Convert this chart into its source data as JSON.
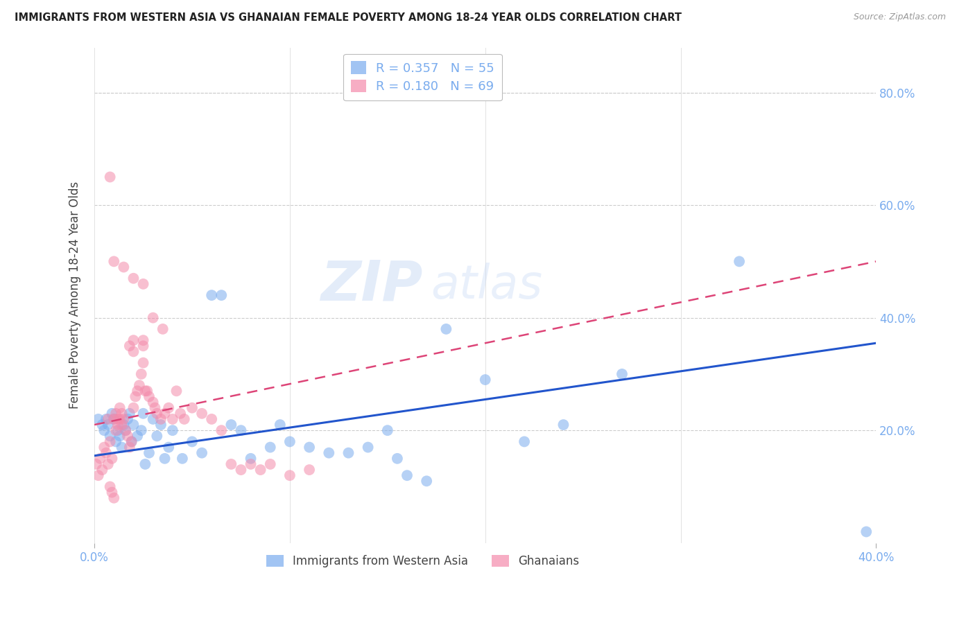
{
  "title": "IMMIGRANTS FROM WESTERN ASIA VS GHANAIAN FEMALE POVERTY AMONG 18-24 YEAR OLDS CORRELATION CHART",
  "source": "Source: ZipAtlas.com",
  "ylabel": "Female Poverty Among 18-24 Year Olds",
  "xlim": [
    0.0,
    0.4
  ],
  "ylim": [
    0.0,
    0.88
  ],
  "xticks": [
    0.0,
    0.4
  ],
  "xticklabels": [
    "0.0%",
    "40.0%"
  ],
  "yticks": [
    0.2,
    0.4,
    0.6,
    0.8
  ],
  "yticklabels": [
    "20.0%",
    "40.0%",
    "60.0%",
    "80.0%"
  ],
  "blue_color": "#7aacee",
  "pink_color": "#f48bab",
  "trendline_blue_color": "#2255cc",
  "trendline_pink_color": "#dd4477",
  "blue_label": "Immigrants from Western Asia",
  "pink_label": "Ghanaians",
  "legend_r_blue": "0.357",
  "legend_n_blue": "55",
  "legend_r_pink": "0.180",
  "legend_n_pink": "69",
  "watermark": "ZIPatlas",
  "blue_trendline_x0": 0.0,
  "blue_trendline_y0": 0.155,
  "blue_trendline_x1": 0.4,
  "blue_trendline_y1": 0.355,
  "pink_trendline_x0": 0.0,
  "pink_trendline_y0": 0.21,
  "pink_trendline_x1": 0.4,
  "pink_trendline_y1": 0.5,
  "blue_x": [
    0.002,
    0.004,
    0.005,
    0.006,
    0.007,
    0.008,
    0.009,
    0.01,
    0.011,
    0.012,
    0.013,
    0.014,
    0.015,
    0.016,
    0.017,
    0.018,
    0.019,
    0.02,
    0.022,
    0.024,
    0.025,
    0.026,
    0.028,
    0.03,
    0.032,
    0.034,
    0.036,
    0.038,
    0.04,
    0.045,
    0.05,
    0.055,
    0.06,
    0.065,
    0.07,
    0.075,
    0.08,
    0.09,
    0.095,
    0.1,
    0.11,
    0.12,
    0.13,
    0.14,
    0.15,
    0.155,
    0.16,
    0.17,
    0.18,
    0.2,
    0.22,
    0.24,
    0.27,
    0.33,
    0.395
  ],
  "blue_y": [
    0.22,
    0.21,
    0.2,
    0.22,
    0.21,
    0.19,
    0.23,
    0.22,
    0.18,
    0.2,
    0.19,
    0.17,
    0.21,
    0.2,
    0.22,
    0.23,
    0.18,
    0.21,
    0.19,
    0.2,
    0.23,
    0.14,
    0.16,
    0.22,
    0.19,
    0.21,
    0.15,
    0.17,
    0.2,
    0.15,
    0.18,
    0.16,
    0.44,
    0.44,
    0.21,
    0.2,
    0.15,
    0.17,
    0.21,
    0.18,
    0.17,
    0.16,
    0.16,
    0.17,
    0.2,
    0.15,
    0.12,
    0.11,
    0.38,
    0.29,
    0.18,
    0.21,
    0.3,
    0.5,
    0.02
  ],
  "pink_x": [
    0.001,
    0.002,
    0.003,
    0.004,
    0.005,
    0.006,
    0.007,
    0.007,
    0.008,
    0.008,
    0.009,
    0.009,
    0.01,
    0.01,
    0.011,
    0.011,
    0.012,
    0.012,
    0.013,
    0.013,
    0.014,
    0.014,
    0.015,
    0.016,
    0.017,
    0.018,
    0.019,
    0.02,
    0.021,
    0.022,
    0.023,
    0.024,
    0.025,
    0.026,
    0.027,
    0.028,
    0.03,
    0.031,
    0.032,
    0.034,
    0.036,
    0.038,
    0.04,
    0.042,
    0.044,
    0.046,
    0.05,
    0.055,
    0.06,
    0.065,
    0.07,
    0.075,
    0.08,
    0.085,
    0.09,
    0.1,
    0.11,
    0.02,
    0.025,
    0.03,
    0.035,
    0.008,
    0.01,
    0.015,
    0.02,
    0.025,
    0.018,
    0.02,
    0.025
  ],
  "pink_y": [
    0.14,
    0.12,
    0.15,
    0.13,
    0.17,
    0.16,
    0.14,
    0.22,
    0.1,
    0.18,
    0.09,
    0.15,
    0.08,
    0.22,
    0.23,
    0.2,
    0.22,
    0.21,
    0.24,
    0.22,
    0.23,
    0.21,
    0.22,
    0.2,
    0.19,
    0.17,
    0.18,
    0.24,
    0.26,
    0.27,
    0.28,
    0.3,
    0.32,
    0.27,
    0.27,
    0.26,
    0.25,
    0.24,
    0.23,
    0.22,
    0.23,
    0.24,
    0.22,
    0.27,
    0.23,
    0.22,
    0.24,
    0.23,
    0.22,
    0.2,
    0.14,
    0.13,
    0.14,
    0.13,
    0.14,
    0.12,
    0.13,
    0.36,
    0.35,
    0.4,
    0.38,
    0.65,
    0.5,
    0.49,
    0.47,
    0.46,
    0.35,
    0.34,
    0.36
  ]
}
